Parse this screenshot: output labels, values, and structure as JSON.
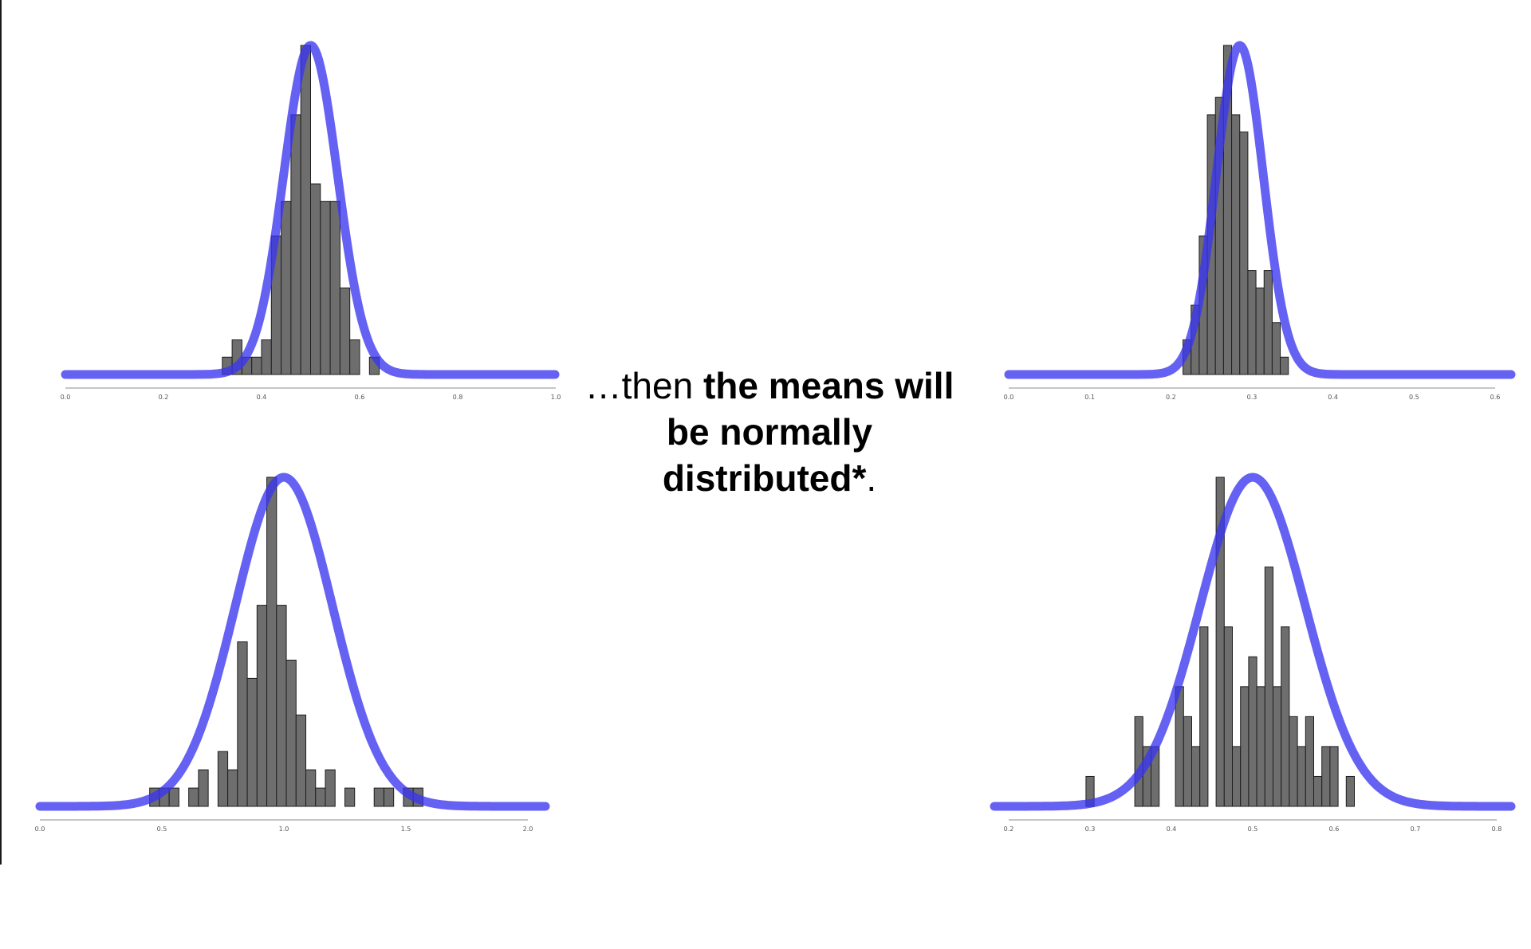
{
  "caption": {
    "lead": "…then ",
    "bold_1": "the means will",
    "bold_2": "be normally",
    "bold_3": "distributed*",
    "end": "."
  },
  "colors": {
    "bar": "#6e6e6e",
    "bar_edge": "#1e1e1e",
    "curve": "#3a35ee",
    "axis": "#b4b4b4"
  },
  "chart_data": [
    {
      "type": "bar",
      "xlim": [
        0.0,
        1.0
      ],
      "ticks": [
        "0.0",
        "0.2",
        "0.4",
        "0.6",
        "0.8",
        "1.0"
      ],
      "bin_start": 0.32,
      "bin_width": 0.02,
      "counts": [
        1,
        2,
        1,
        1,
        2,
        8,
        10,
        15,
        19,
        11,
        10,
        10,
        5,
        2,
        0,
        1
      ],
      "normal_fit": {
        "mean": 0.5,
        "sd": 0.055,
        "peak_count": 19
      }
    },
    {
      "type": "bar",
      "xlim": [
        0.0,
        0.6
      ],
      "ticks": [
        "0.0",
        "0.1",
        "0.2",
        "0.3",
        "0.4",
        "0.5",
        "0.6"
      ],
      "bin_start": 0.215,
      "bin_width": 0.01,
      "counts": [
        2,
        4,
        8,
        15,
        16,
        19,
        15,
        14,
        6,
        5,
        6,
        3,
        1
      ],
      "normal_fit": {
        "mean": 0.285,
        "sd": 0.029,
        "peak_count": 19
      }
    },
    {
      "type": "bar",
      "xlim": [
        0.0,
        2.0
      ],
      "ticks": [
        "0.0",
        "0.5",
        "1.0",
        "1.5",
        "2.0"
      ],
      "bin_start": 0.45,
      "bin_width": 0.04,
      "counts": [
        1,
        1,
        1,
        0,
        1,
        2,
        0,
        3,
        2,
        9,
        7,
        11,
        18,
        11,
        8,
        5,
        2,
        1,
        2,
        0,
        1,
        0,
        0,
        1,
        1,
        0,
        1,
        1
      ],
      "normal_fit": {
        "mean": 1.0,
        "sd": 0.2,
        "peak_count": 18
      }
    },
    {
      "type": "bar",
      "xlim": [
        0.2,
        0.8
      ],
      "ticks": [
        "0.2",
        "0.3",
        "0.4",
        "0.5",
        "0.6",
        "0.7",
        "0.8"
      ],
      "bin_start": 0.295,
      "bin_width": 0.01,
      "counts": [
        1,
        0,
        0,
        0,
        0,
        0,
        3,
        2,
        2,
        0,
        0,
        4,
        3,
        2,
        6,
        0,
        11,
        6,
        2,
        4,
        5,
        4,
        8,
        4,
        6,
        3,
        2,
        3,
        1,
        2,
        2,
        0,
        1
      ],
      "normal_fit": {
        "mean": 0.5,
        "sd": 0.065,
        "peak_count": 11
      }
    }
  ]
}
